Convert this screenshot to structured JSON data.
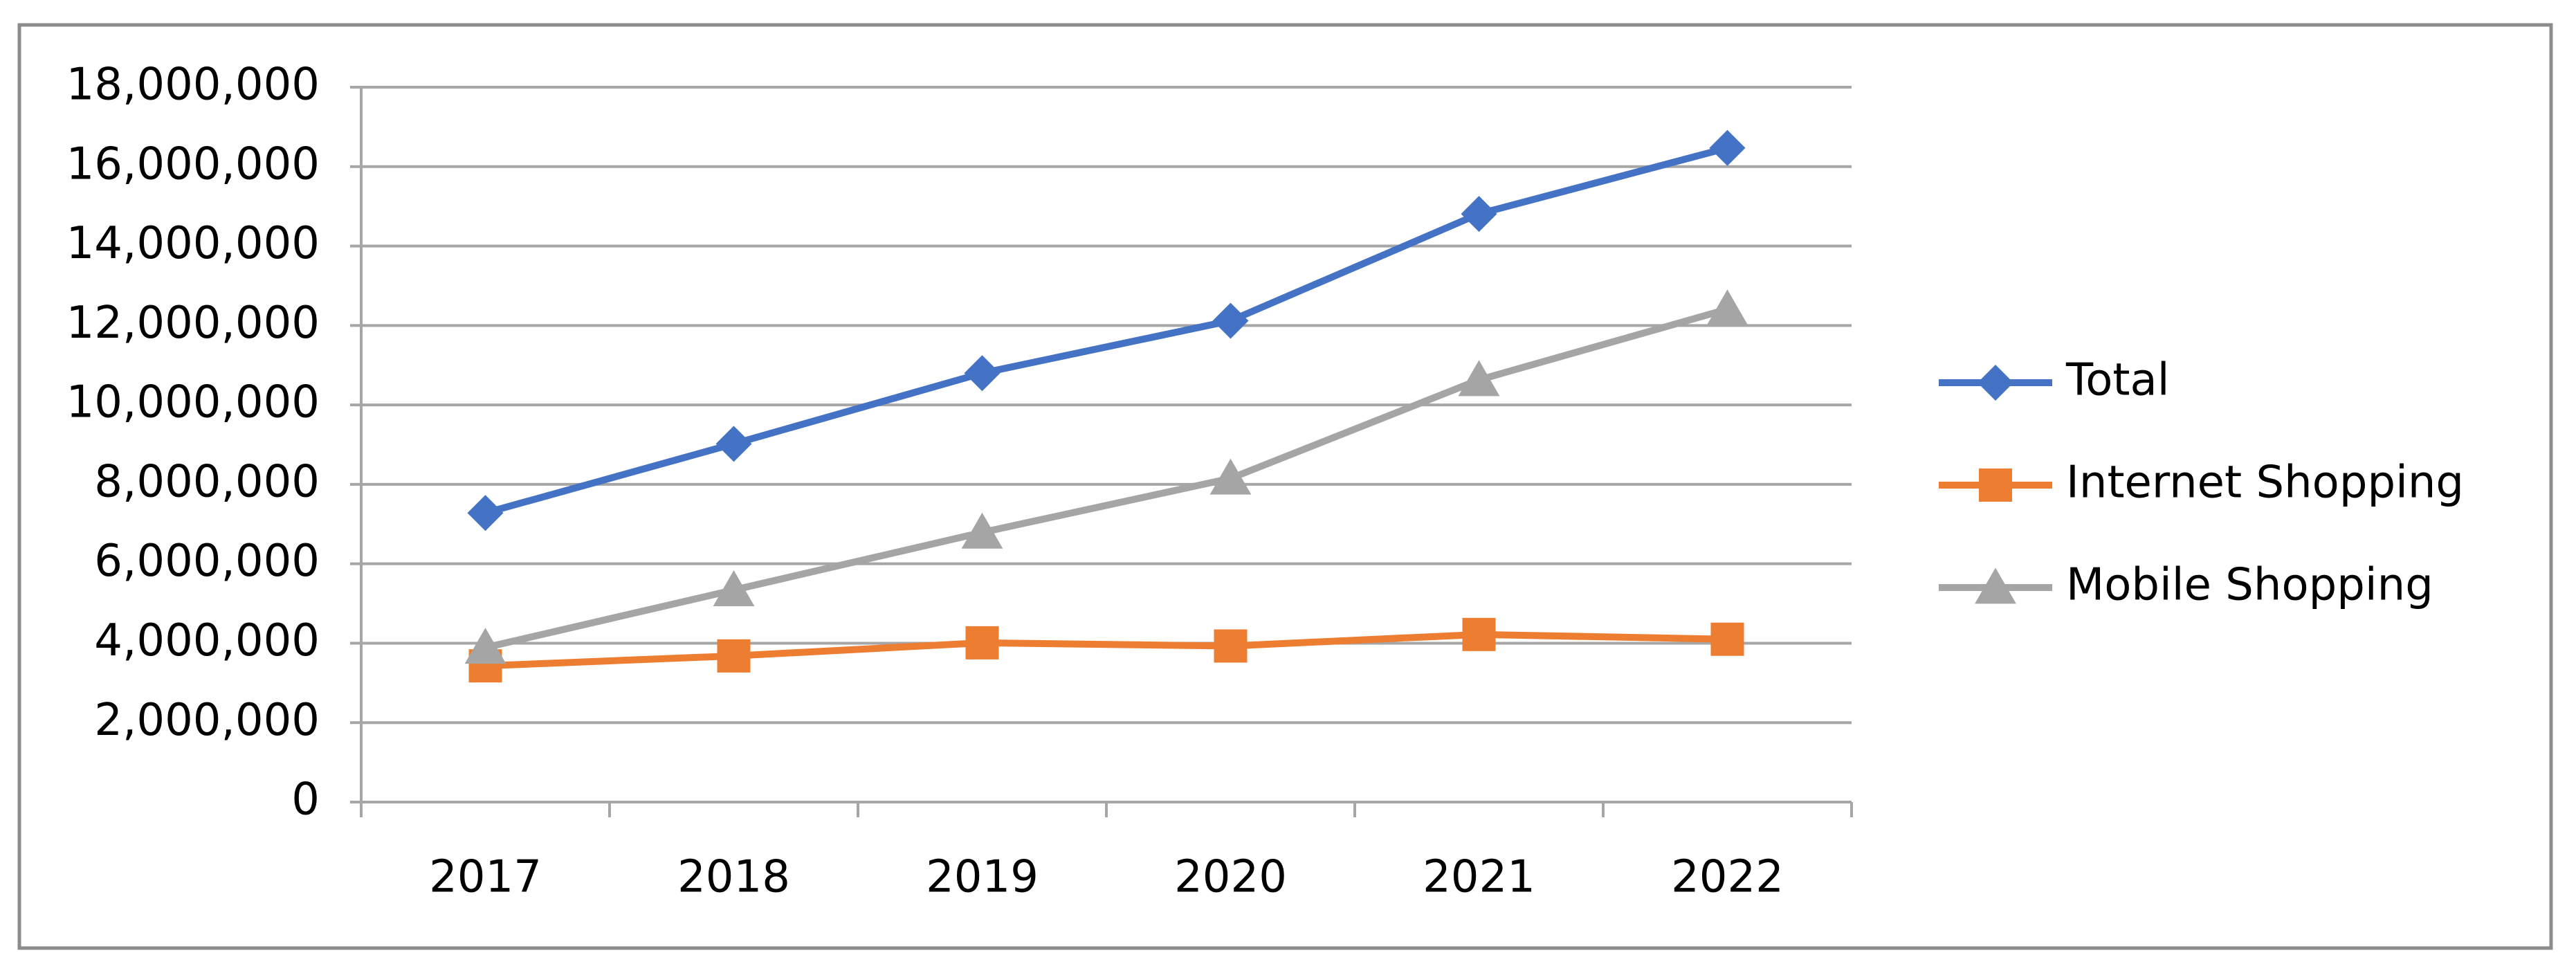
{
  "chart_data": {
    "type": "line",
    "categories": [
      "2017",
      "2018",
      "2019",
      "2020",
      "2021",
      "2022"
    ],
    "series": [
      {
        "name": "Total",
        "color": "#4472c4",
        "marker": "diamond",
        "values": [
          7280000,
          9020000,
          10800000,
          12120000,
          14810000,
          16470000
        ]
      },
      {
        "name": "Internet Shopping",
        "color": "#ed7d31",
        "marker": "square",
        "values": [
          3430000,
          3680000,
          4010000,
          3930000,
          4220000,
          4100000
        ]
      },
      {
        "name": "Mobile Shopping",
        "color": "#a5a5a5",
        "marker": "triangle",
        "values": [
          3890000,
          5340000,
          6790000,
          8150000,
          10630000,
          12410000
        ]
      }
    ],
    "ylim": [
      0,
      18000000
    ],
    "yticks": [
      0,
      {
        "value": 2000000,
        "label": "2,000,000"
      },
      {
        "value": 4000000,
        "label": "4,000,000"
      },
      {
        "value": 6000000,
        "label": "6,000,000"
      },
      {
        "value": 8000000,
        "label": "8,000,000"
      },
      {
        "value": 10000000,
        "label": "10,000,000"
      },
      {
        "value": 12000000,
        "label": "12,000,000"
      },
      {
        "value": 14000000,
        "label": "14,000,000"
      },
      {
        "value": 16000000,
        "label": "16,000,000"
      },
      {
        "value": 18000000,
        "label": "18,000,000"
      }
    ],
    "grid": true,
    "legend": "right"
  }
}
